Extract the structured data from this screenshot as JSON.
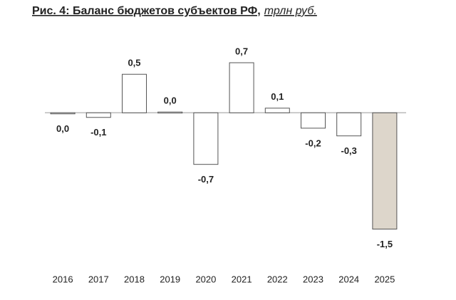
{
  "chart_data": {
    "type": "bar",
    "title": "Рис. 4: Баланс бюджетов субъектов РФ,",
    "unit": "трлн руб.",
    "categories": [
      "2016",
      "2017",
      "2018",
      "2019",
      "2020",
      "2021",
      "2022",
      "2023",
      "2024",
      "2025"
    ],
    "values": [
      -0.01,
      -0.06,
      0.5,
      0.01,
      -0.67,
      0.65,
      0.06,
      -0.2,
      -0.3,
      -1.51
    ],
    "value_labels": [
      "0,0",
      "-0,1",
      "0,5",
      "0,0",
      "-0,7",
      "0,7",
      "0,1",
      "-0,2",
      "-0,3",
      "-1,5"
    ],
    "colors": [
      "#ffffff",
      "#ffffff",
      "#ffffff",
      "#ffffff",
      "#ffffff",
      "#ffffff",
      "#ffffff",
      "#ffffff",
      "#ffffff",
      "#ddd6cb"
    ],
    "ylim": [
      -1.7,
      0.9
    ]
  }
}
